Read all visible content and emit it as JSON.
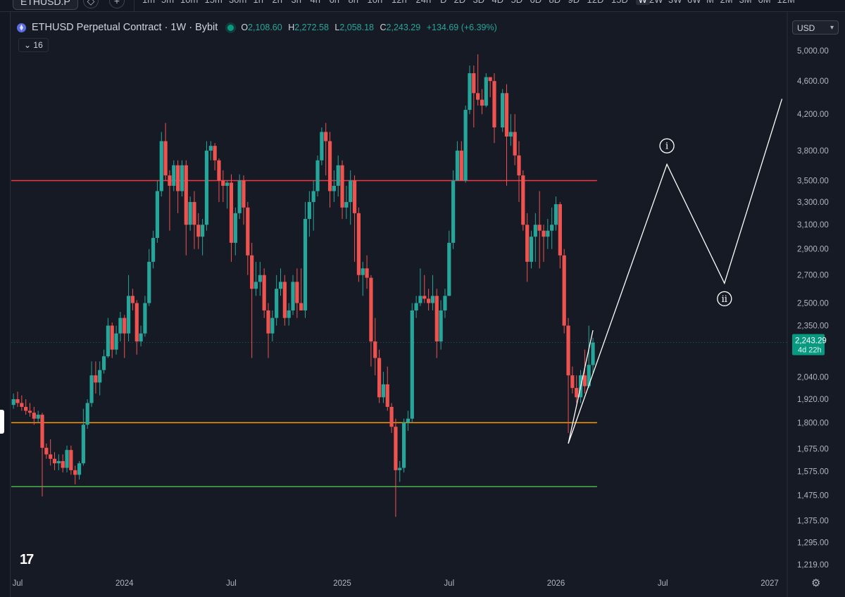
{
  "toolbar": {
    "symbol": "ETHUSD.P",
    "timeframes": [
      "1m",
      "5m",
      "10m",
      "15m",
      "30m",
      "1h",
      "2h",
      "3h",
      "4h",
      "6h",
      "8h",
      "10h",
      "12h",
      "24h",
      "D",
      "2D",
      "3D",
      "4D",
      "5D",
      "6D",
      "8D",
      "9D",
      "12D",
      "15D",
      "W",
      "2W",
      "3W",
      "6W",
      "M",
      "2M",
      "3M",
      "6M",
      "12M"
    ],
    "active_timeframe": "W"
  },
  "header": {
    "title": "ETHUSD Perpetual Contract · 1W · Bybit",
    "open_label": "O",
    "open": "2,108.60",
    "high_label": "H",
    "high": "2,272.58",
    "low_label": "L",
    "low": "2,058.18",
    "close_label": "C",
    "close": "2,243.29",
    "change": "+134.69 (+6.39%)"
  },
  "indicators": {
    "count": "16"
  },
  "currency": {
    "label": "USD"
  },
  "last_price_tag": {
    "price": "2,243.29",
    "countdown": "4d 22h"
  },
  "colors": {
    "up": "#26a69a",
    "down": "#ef5350",
    "resistance": "#f23645",
    "support_mid": "#ff9800",
    "support_low": "#4caf50",
    "projection": "#ffffff",
    "price_tag": "#089981"
  },
  "chart_data": {
    "type": "candlestick",
    "log_scale": true,
    "y_ticks": [
      "5,000.00",
      "4,600.00",
      "4,200.00",
      "3,800.00",
      "3,500.00",
      "3,300.00",
      "3,100.00",
      "2,900.00",
      "2,700.00",
      "2,500.00",
      "2,350.00",
      "2,040.00",
      "1,920.00",
      "1,800.00",
      "1,675.00",
      "1,575.00",
      "1,475.00",
      "1,375.00",
      "1,295.00",
      "1,219.00"
    ],
    "y_tick_values": [
      5000,
      4600,
      4200,
      3800,
      3500,
      3300,
      3100,
      2900,
      2700,
      2500,
      2350,
      2040,
      1920,
      1800,
      1675,
      1575,
      1475,
      1375,
      1295,
      1219
    ],
    "x_ticks": [
      "Jul",
      "2024",
      "Jul",
      "2025",
      "Jul",
      "2026",
      "Jul",
      "2027"
    ],
    "x_tick_dates": [
      "2023-07-03",
      "2024-01-01",
      "2024-07-01",
      "2025-01-06",
      "2025-07-07",
      "2026-01-05",
      "2026-07-06",
      "2027-01-04"
    ],
    "ylim": [
      1180,
      5300
    ],
    "horizontal_levels": [
      {
        "price": 3500,
        "color_key": "resistance"
      },
      {
        "price": 1800,
        "color_key": "support_mid"
      },
      {
        "price": 1510,
        "color_key": "support_low"
      }
    ],
    "trendline": [
      {
        "week": "2026-01-26",
        "price": 1700
      },
      {
        "week": "2026-03-09",
        "price": 2320
      }
    ],
    "wave_path": [
      {
        "week": "2026-01-26",
        "price": 1700
      },
      {
        "week": "2026-07-13",
        "price": 3660
      },
      {
        "week": "2026-10-19",
        "price": 2640
      },
      {
        "week": "2027-01-25",
        "price": 4380
      }
    ],
    "wave_labels": [
      {
        "text": "i",
        "week": "2026-07-13",
        "price": 3850
      },
      {
        "text": "ii",
        "week": "2026-10-19",
        "price": 2530
      }
    ],
    "candles": [
      [
        "2023-06-26",
        1890,
        1950,
        1870,
        1920
      ],
      [
        "2023-07-03",
        1920,
        1960,
        1880,
        1900
      ],
      [
        "2023-07-10",
        1900,
        1940,
        1860,
        1880
      ],
      [
        "2023-07-17",
        1880,
        1920,
        1840,
        1860
      ],
      [
        "2023-07-24",
        1860,
        1900,
        1830,
        1850
      ],
      [
        "2023-07-31",
        1850,
        1880,
        1790,
        1820
      ],
      [
        "2023-08-07",
        1820,
        1860,
        1800,
        1840
      ],
      [
        "2023-08-14",
        1840,
        1850,
        1470,
        1680
      ],
      [
        "2023-08-21",
        1680,
        1700,
        1630,
        1650
      ],
      [
        "2023-08-28",
        1650,
        1720,
        1600,
        1630
      ],
      [
        "2023-09-04",
        1630,
        1660,
        1580,
        1610
      ],
      [
        "2023-09-11",
        1610,
        1650,
        1580,
        1620
      ],
      [
        "2023-09-18",
        1620,
        1650,
        1570,
        1590
      ],
      [
        "2023-09-25",
        1590,
        1690,
        1570,
        1670
      ],
      [
        "2023-10-02",
        1670,
        1690,
        1560,
        1580
      ],
      [
        "2023-10-09",
        1580,
        1600,
        1520,
        1560
      ],
      [
        "2023-10-16",
        1560,
        1620,
        1540,
        1610
      ],
      [
        "2023-10-23",
        1610,
        1870,
        1600,
        1790
      ],
      [
        "2023-10-30",
        1790,
        1920,
        1770,
        1900
      ],
      [
        "2023-11-06",
        1900,
        2130,
        1880,
        2050
      ],
      [
        "2023-11-13",
        2050,
        2130,
        1950,
        2010
      ],
      [
        "2023-11-20",
        2010,
        2130,
        1940,
        2080
      ],
      [
        "2023-11-27",
        2080,
        2200,
        2060,
        2160
      ],
      [
        "2023-12-04",
        2160,
        2400,
        2150,
        2350
      ],
      [
        "2023-12-11",
        2350,
        2370,
        2150,
        2200
      ],
      [
        "2023-12-18",
        2200,
        2350,
        2170,
        2300
      ],
      [
        "2023-12-25",
        2300,
        2440,
        2250,
        2400
      ],
      [
        "2024-01-01",
        2400,
        2420,
        2150,
        2300
      ],
      [
        "2024-01-08",
        2300,
        2700,
        2250,
        2550
      ],
      [
        "2024-01-15",
        2550,
        2600,
        2450,
        2500
      ],
      [
        "2024-01-22",
        2500,
        2520,
        2170,
        2250
      ],
      [
        "2024-01-29",
        2250,
        2350,
        2220,
        2300
      ],
      [
        "2024-02-05",
        2300,
        2550,
        2280,
        2500
      ],
      [
        "2024-02-12",
        2500,
        2900,
        2480,
        2800
      ],
      [
        "2024-02-19",
        2800,
        3050,
        2750,
        2990
      ],
      [
        "2024-02-26",
        2990,
        3500,
        2950,
        3400
      ],
      [
        "2024-03-04",
        3400,
        4000,
        3350,
        3900
      ],
      [
        "2024-03-11",
        3900,
        4100,
        3500,
        3550
      ],
      [
        "2024-03-18",
        3550,
        3600,
        3050,
        3450
      ],
      [
        "2024-03-25",
        3450,
        3700,
        3400,
        3650
      ],
      [
        "2024-04-01",
        3650,
        3700,
        3200,
        3400
      ],
      [
        "2024-04-08",
        3400,
        3700,
        3350,
        3650
      ],
      [
        "2024-04-15",
        3650,
        3700,
        2850,
        3100
      ],
      [
        "2024-04-22",
        3100,
        3350,
        3050,
        3300
      ],
      [
        "2024-04-29",
        3300,
        3400,
        2900,
        3100
      ],
      [
        "2024-05-06",
        3100,
        3200,
        2900,
        3000
      ],
      [
        "2024-05-13",
        3000,
        3150,
        2850,
        3100
      ],
      [
        "2024-05-20",
        3100,
        3900,
        3050,
        3800
      ],
      [
        "2024-05-27",
        3800,
        3900,
        3700,
        3850
      ],
      [
        "2024-06-03",
        3850,
        3880,
        3600,
        3700
      ],
      [
        "2024-06-10",
        3700,
        3720,
        3300,
        3500
      ],
      [
        "2024-06-17",
        3500,
        3600,
        3300,
        3450
      ],
      [
        "2024-06-24",
        3450,
        3500,
        3240,
        3480
      ],
      [
        "2024-07-01",
        3480,
        3560,
        2800,
        2950
      ],
      [
        "2024-07-08",
        2950,
        3250,
        2850,
        3200
      ],
      [
        "2024-07-15",
        3200,
        3560,
        3150,
        3500
      ],
      [
        "2024-07-22",
        3500,
        3550,
        3100,
        3250
      ],
      [
        "2024-07-29",
        3250,
        3300,
        2700,
        2850
      ],
      [
        "2024-08-05",
        2850,
        2950,
        2150,
        2600
      ],
      [
        "2024-08-12",
        2600,
        2800,
        2550,
        2650
      ],
      [
        "2024-08-19",
        2650,
        2800,
        2550,
        2700
      ],
      [
        "2024-08-26",
        2700,
        2750,
        2400,
        2450
      ],
      [
        "2024-09-02",
        2450,
        2500,
        2150,
        2300
      ],
      [
        "2024-09-09",
        2300,
        2450,
        2250,
        2400
      ],
      [
        "2024-09-16",
        2400,
        2700,
        2350,
        2600
      ],
      [
        "2024-09-23",
        2600,
        2750,
        2550,
        2650
      ],
      [
        "2024-09-30",
        2650,
        2700,
        2350,
        2400
      ],
      [
        "2024-10-07",
        2400,
        2500,
        2350,
        2450
      ],
      [
        "2024-10-14",
        2450,
        2700,
        2420,
        2650
      ],
      [
        "2024-10-21",
        2650,
        2750,
        2400,
        2500
      ],
      [
        "2024-10-28",
        2500,
        2750,
        2450,
        2450
      ],
      [
        "2024-11-04",
        2450,
        3300,
        2400,
        3150
      ],
      [
        "2024-11-11",
        3150,
        3400,
        3000,
        3300
      ],
      [
        "2024-11-18",
        3300,
        3500,
        3050,
        3400
      ],
      [
        "2024-11-25",
        3400,
        3750,
        3350,
        3700
      ],
      [
        "2024-12-02",
        3700,
        4050,
        3650,
        4000
      ],
      [
        "2024-12-09",
        4000,
        4100,
        3550,
        3900
      ],
      [
        "2024-12-16",
        3900,
        4000,
        3250,
        3400
      ],
      [
        "2024-12-23",
        3400,
        3600,
        3300,
        3450
      ],
      [
        "2024-12-30",
        3450,
        3750,
        3350,
        3650
      ],
      [
        "2025-01-06",
        3650,
        3700,
        3150,
        3250
      ],
      [
        "2025-01-13",
        3250,
        3450,
        3150,
        3300
      ],
      [
        "2025-01-20",
        3300,
        3600,
        3100,
        3500
      ],
      [
        "2025-01-27",
        3500,
        3550,
        2800,
        3200
      ],
      [
        "2025-02-03",
        3200,
        3250,
        2650,
        2700
      ],
      [
        "2025-02-10",
        2700,
        2800,
        2550,
        2750
      ],
      [
        "2025-02-17",
        2750,
        2850,
        2600,
        2680
      ],
      [
        "2025-02-24",
        2680,
        2700,
        2100,
        2250
      ],
      [
        "2025-03-03",
        2250,
        2400,
        2050,
        2150
      ],
      [
        "2025-03-10",
        2150,
        2200,
        1900,
        1930
      ],
      [
        "2025-03-17",
        1930,
        2070,
        1900,
        2000
      ],
      [
        "2025-03-24",
        2000,
        2100,
        1860,
        1880
      ],
      [
        "2025-03-31",
        1880,
        1900,
        1750,
        1780
      ],
      [
        "2025-04-07",
        1780,
        1820,
        1390,
        1580
      ],
      [
        "2025-04-14",
        1580,
        1620,
        1530,
        1590
      ],
      [
        "2025-04-21",
        1590,
        1820,
        1570,
        1800
      ],
      [
        "2025-04-28",
        1800,
        1860,
        1760,
        1820
      ],
      [
        "2025-05-05",
        1820,
        2500,
        1800,
        2450
      ],
      [
        "2025-05-12",
        2450,
        2550,
        2400,
        2500
      ],
      [
        "2025-05-19",
        2500,
        2750,
        2480,
        2550
      ],
      [
        "2025-05-26",
        2550,
        2700,
        2500,
        2530
      ],
      [
        "2025-06-02",
        2530,
        2600,
        2450,
        2500
      ],
      [
        "2025-06-09",
        2500,
        2700,
        2450,
        2550
      ],
      [
        "2025-06-16",
        2550,
        2600,
        2150,
        2250
      ],
      [
        "2025-06-23",
        2250,
        2520,
        2200,
        2450
      ],
      [
        "2025-06-30",
        2450,
        2600,
        2400,
        2550
      ],
      [
        "2025-07-07",
        2550,
        3050,
        2550,
        2950
      ],
      [
        "2025-07-14",
        2950,
        3600,
        2900,
        3500
      ],
      [
        "2025-07-21",
        3500,
        3900,
        3500,
        3800
      ],
      [
        "2025-07-28",
        3800,
        3900,
        3500,
        3500
      ],
      [
        "2025-08-04",
        3500,
        4300,
        3480,
        4250
      ],
      [
        "2025-08-11",
        4250,
        4800,
        4200,
        4700
      ],
      [
        "2025-08-18",
        4700,
        4800,
        4050,
        4450
      ],
      [
        "2025-08-25",
        4450,
        4950,
        4300,
        4370
      ],
      [
        "2025-09-01",
        4370,
        4500,
        4200,
        4300
      ],
      [
        "2025-09-08",
        4300,
        4700,
        4280,
        4650
      ],
      [
        "2025-09-15",
        4650,
        4650,
        4400,
        4600
      ],
      [
        "2025-09-22",
        4600,
        4700,
        3880,
        4050
      ],
      [
        "2025-10-06",
        4050,
        4500,
        4000,
        4450
      ],
      [
        "2025-10-13",
        4450,
        4560,
        3450,
        3950
      ],
      [
        "2025-10-20",
        3950,
        4200,
        3850,
        4000
      ],
      [
        "2025-10-27",
        4000,
        4200,
        3650,
        3750
      ],
      [
        "2025-11-03",
        3750,
        3900,
        3300,
        3550
      ],
      [
        "2025-11-10",
        3550,
        3600,
        3050,
        3100
      ],
      [
        "2025-11-17",
        3100,
        3200,
        2650,
        2800
      ],
      [
        "2025-11-24",
        2800,
        3050,
        2750,
        3000
      ],
      [
        "2025-12-01",
        3000,
        3200,
        2800,
        3100
      ],
      [
        "2025-12-08",
        3100,
        3400,
        2750,
        3050
      ],
      [
        "2025-12-15",
        3050,
        3100,
        2800,
        3000
      ],
      [
        "2025-12-22",
        3000,
        3150,
        2900,
        3050
      ],
      [
        "2025-12-29",
        3050,
        3250,
        2900,
        3100
      ],
      [
        "2026-01-05",
        3100,
        3350,
        3050,
        3280
      ],
      [
        "2026-01-12",
        3280,
        3300,
        2750,
        2850
      ],
      [
        "2026-01-19",
        2850,
        2900,
        2300,
        2350
      ],
      [
        "2026-01-26",
        2350,
        2400,
        1750,
        2050
      ],
      [
        "2026-02-02",
        2050,
        2100,
        1950,
        1980
      ],
      [
        "2026-02-09",
        1980,
        2050,
        1900,
        1930
      ],
      [
        "2026-02-16",
        1930,
        2080,
        1900,
        2050
      ],
      [
        "2026-02-23",
        2050,
        2200,
        1950,
        1990
      ],
      [
        "2026-03-02",
        1990,
        2350,
        1980,
        2110
      ],
      [
        "2026-03-09",
        2108.6,
        2272.58,
        2058.18,
        2243.29
      ]
    ]
  }
}
